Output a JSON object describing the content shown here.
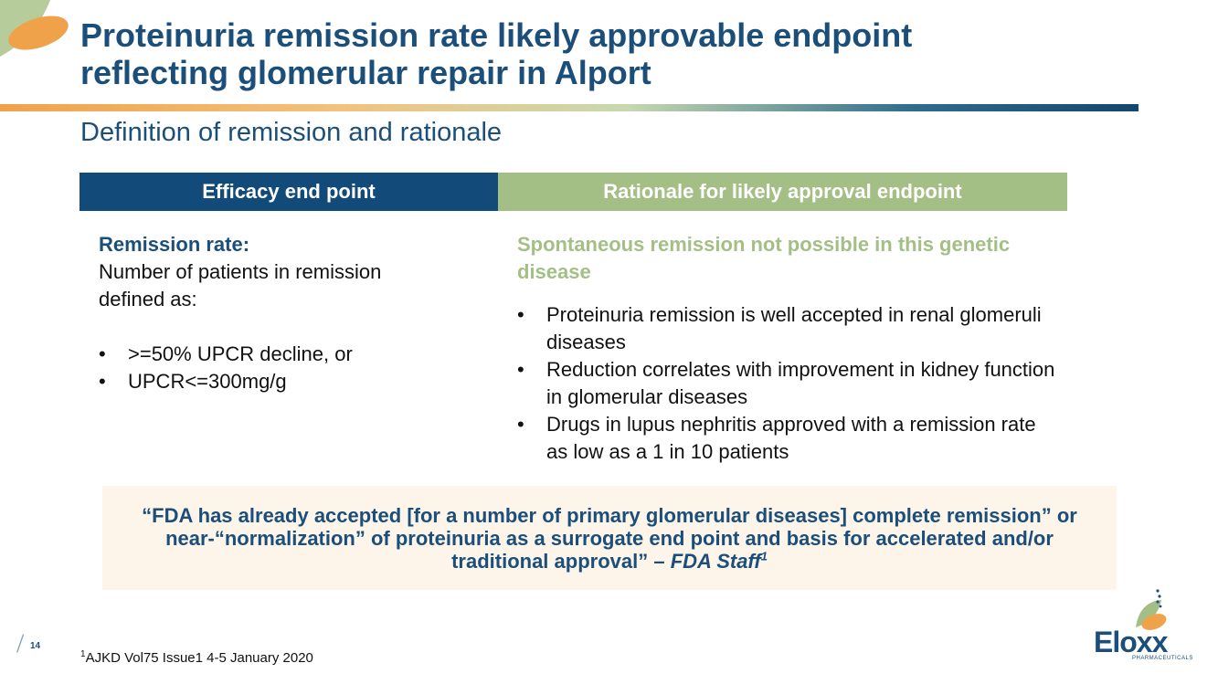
{
  "colors": {
    "navy": "#1b4f7a",
    "header_navy": "#124a79",
    "sage": "#a3bf86",
    "orange": "#f0a24a",
    "quote_bg": "#fdf4ea"
  },
  "slide": {
    "title_lines": [
      "Proteinuria remission rate likely approvable endpoint",
      "reflecting glomerular repair in Alport"
    ],
    "subtitle": "Definition of remission and rationale"
  },
  "table": {
    "left_header": "Efficacy end point",
    "right_header": "Rationale for likely approval endpoint",
    "left": {
      "heading": "Remission rate:",
      "definition_lines": [
        "Number of patients in remission",
        "defined as:"
      ],
      "bullets": [
        ">=50% UPCR decline, or",
        "UPCR<=300mg/g"
      ]
    },
    "right": {
      "heading": "Spontaneous remission not possible in this genetic disease",
      "bullets": [
        "Proteinuria remission is well accepted in renal glomeruli diseases",
        "Reduction correlates with improvement in kidney function in glomerular diseases",
        "Drugs in lupus nephritis approved with a remission rate as low as a 1 in 10 patients"
      ]
    },
    "bullet_char": "•"
  },
  "quote": {
    "text": "“FDA has already accepted [for a number of primary glomerular diseases] complete remission” or near-“normalization” of proteinuria as a surrogate end point and basis for accelerated and/or traditional approval” – ",
    "source": "FDA Staff",
    "sup": "1"
  },
  "footer": {
    "page_slash": "/",
    "page_number": "14",
    "footnote_sup": "1",
    "footnote_text": "AJKD Vol75 Issue1 4-5 January 2020"
  },
  "logo": {
    "name": "Eloxx",
    "tagline": "PHARMACEUTICALS"
  }
}
